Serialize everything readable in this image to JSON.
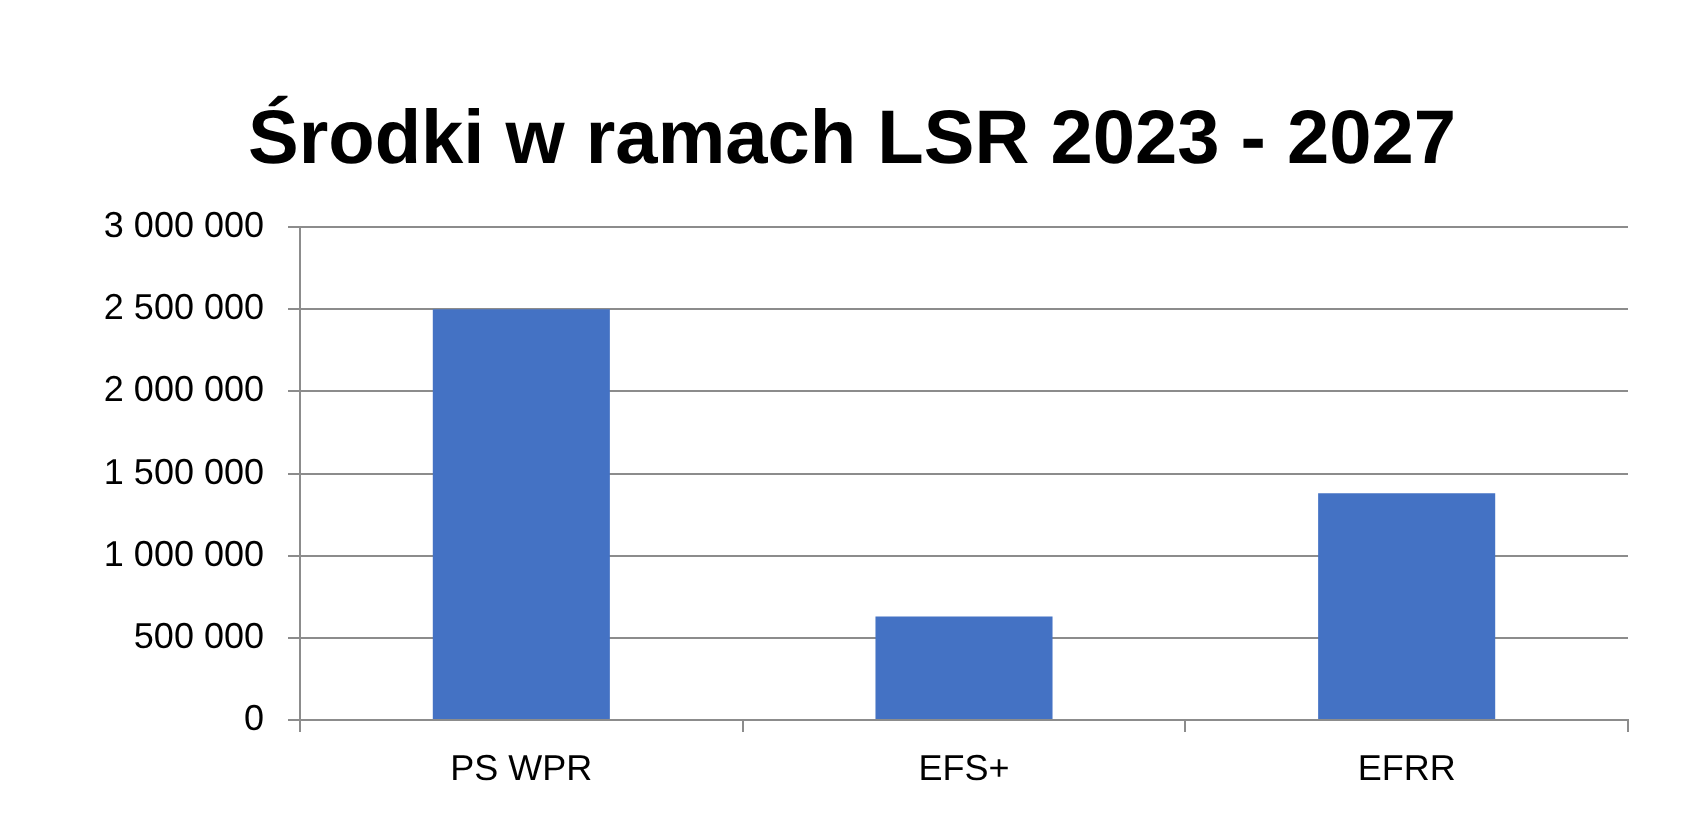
{
  "chart_data": {
    "type": "bar",
    "title": "Środki w ramach LSR 2023 - 2027",
    "categories": [
      "PS WPR",
      "EFS+",
      "EFRR"
    ],
    "values": [
      2500000,
      630000,
      1380000
    ],
    "color": "#4472c4",
    "ylim": [
      0,
      3000000
    ],
    "yticks": [
      0,
      {
        "value": 500000,
        "label": "500 000"
      },
      {
        "value": 1000000,
        "label": "1 000 000"
      },
      {
        "value": 1500000,
        "label": "1 500 000"
      },
      {
        "value": 2000000,
        "label": "2 000 000"
      },
      {
        "value": 2500000,
        "label": "2 500 000"
      },
      {
        "value": 3000000,
        "label": "3 000 000"
      }
    ],
    "grid": "y"
  }
}
